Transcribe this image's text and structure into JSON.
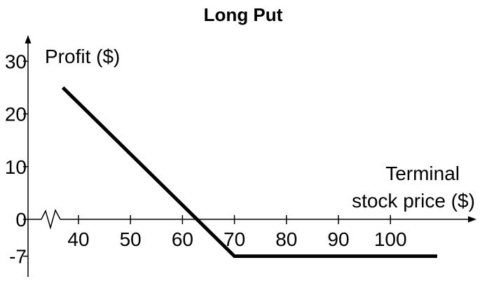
{
  "chart_data": {
    "type": "line",
    "title": "Long Put",
    "ylabel": "Profit ($)",
    "xlabel_lines": [
      "Terminal",
      "stock price ($)"
    ],
    "x_ticks": [
      40,
      50,
      60,
      70,
      80,
      90,
      100
    ],
    "x_tick_labels": [
      "40",
      "50",
      "60",
      "70",
      "80",
      "90",
      "100"
    ],
    "y_ticks": [
      30,
      20,
      10,
      0,
      -7
    ],
    "y_tick_labels": [
      "30",
      "20",
      "10",
      "0",
      "-7"
    ],
    "xlim": [
      30,
      113
    ],
    "ylim": [
      -11,
      34
    ],
    "axis_break": true,
    "grid": false,
    "series": [
      {
        "x": [
          37,
          70,
          109
        ],
        "y": [
          25,
          -7,
          -7
        ],
        "color": "#000000"
      }
    ]
  }
}
